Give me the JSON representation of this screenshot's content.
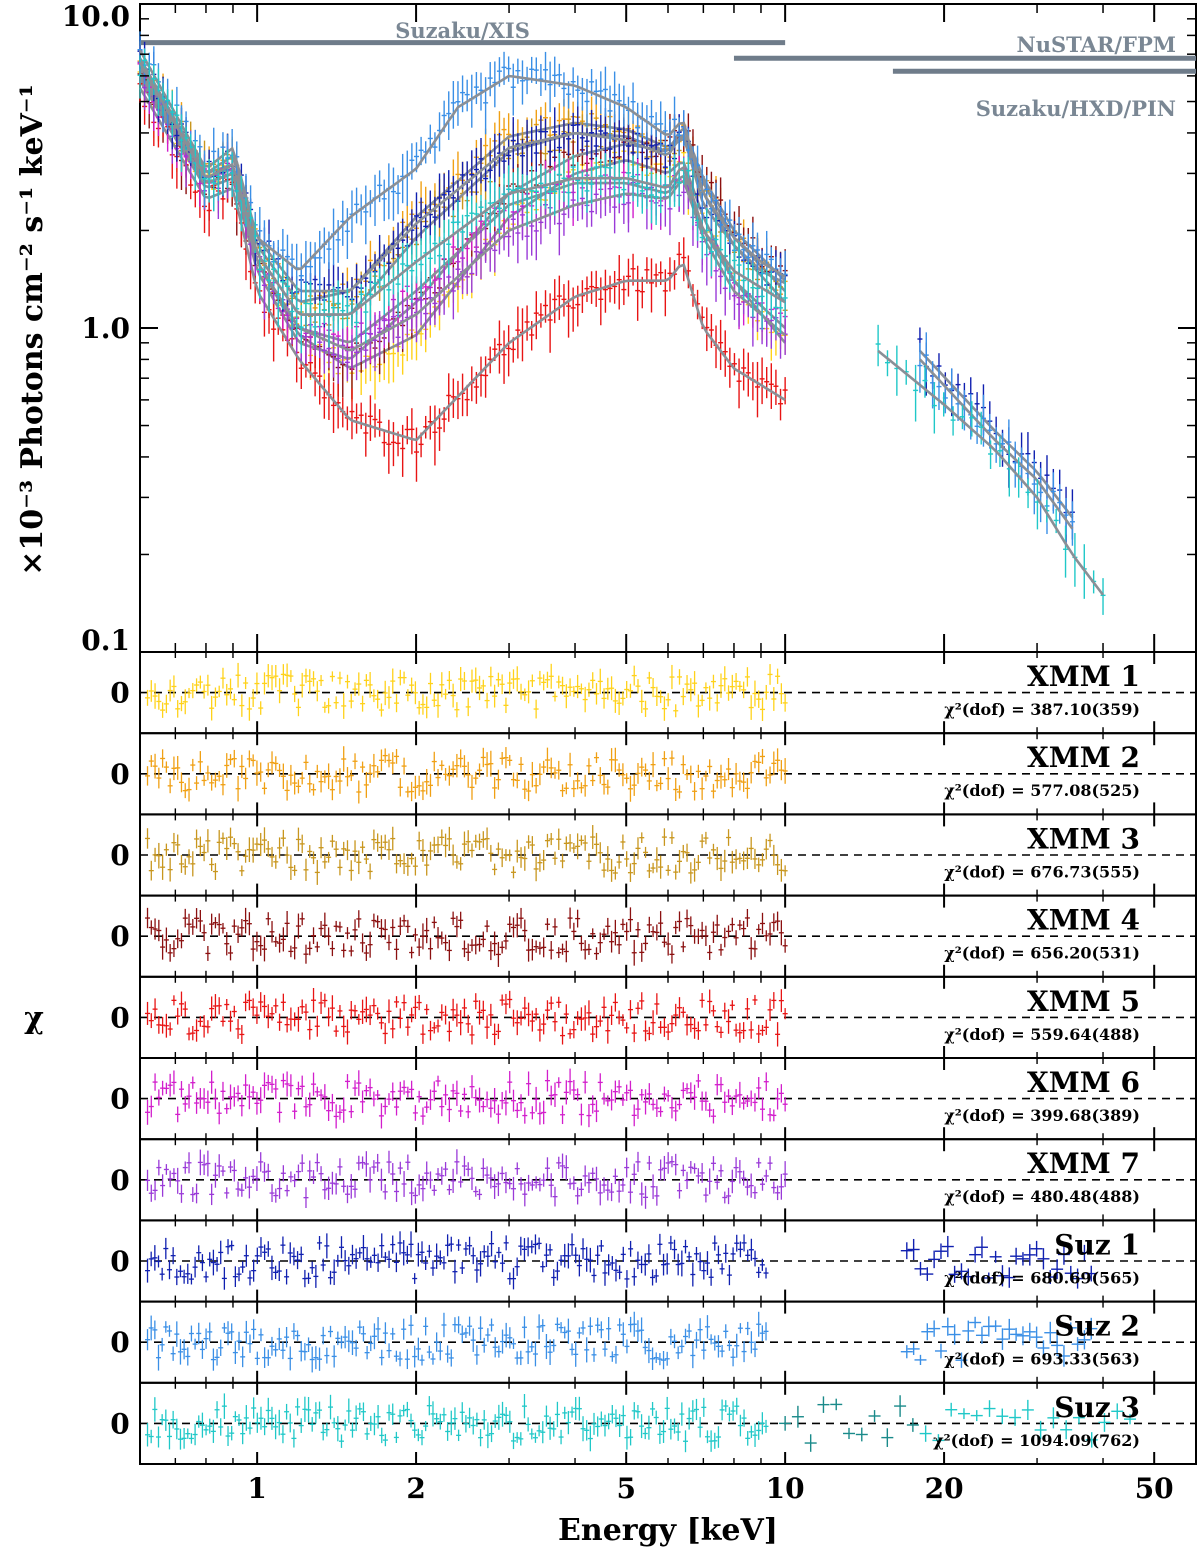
{
  "chart_data": {
    "type": "line",
    "title": "",
    "xlabel": "Energy [keV]",
    "ylabel": "×10⁻³ Photons cm⁻² s⁻¹ keV⁻¹",
    "residual_ylabel": "χ",
    "xscale": "log",
    "yscale": "log",
    "xlim": [
      0.6,
      60
    ],
    "ylim": [
      0.1,
      10.0
    ],
    "x_ticks": [
      1,
      2,
      5,
      10,
      20,
      50
    ],
    "x_tick_labels": [
      "1",
      "2",
      "5",
      "10",
      "20",
      "50"
    ],
    "y_ticks": [
      0.1,
      1.0,
      10.0
    ],
    "y_tick_labels": [
      "0.1",
      "1.0",
      "10.0"
    ],
    "instruments": [
      {
        "label": "Suzaku/XIS",
        "emin": 0.6,
        "emax": 10.0,
        "level": 7.6
      },
      {
        "label": "NuSTAR/FPM",
        "emin": 8.0,
        "emax": 60.0,
        "level": 6.8
      },
      {
        "label": "Suzaku/HXD/PIN",
        "emin": 16.0,
        "emax": 60.0,
        "level": 6.2
      }
    ],
    "series": [
      {
        "name": "XMM 1",
        "color": "#ffd21a",
        "chi2": "χ²(dof) = 387.10(359)",
        "x": [
          0.6,
          0.8,
          0.9,
          1.0,
          1.2,
          1.5,
          2.0,
          3.0,
          4.0,
          5.0,
          6.0,
          6.4,
          7.0,
          8.0,
          10.0
        ],
        "y": [
          6.0,
          2.8,
          3.0,
          1.6,
          0.95,
          0.75,
          0.95,
          2.2,
          3.0,
          3.3,
          3.0,
          3.3,
          2.2,
          1.4,
          0.9
        ]
      },
      {
        "name": "XMM 2",
        "color": "#f0a014",
        "chi2": "χ²(dof) = 577.08(525)",
        "x": [
          0.6,
          0.8,
          0.9,
          1.0,
          1.2,
          1.5,
          2.0,
          3.0,
          4.0,
          5.0,
          6.0,
          6.4,
          7.0,
          8.0,
          10.0
        ],
        "y": [
          6.5,
          3.0,
          3.2,
          1.8,
          1.2,
          1.3,
          2.2,
          3.9,
          4.3,
          4.1,
          3.6,
          4.0,
          2.8,
          1.9,
          1.3
        ]
      },
      {
        "name": "XMM 3",
        "color": "#c8961e",
        "chi2": "χ²(dof) = 676.73(555)",
        "x": [
          0.6,
          0.8,
          0.9,
          1.0,
          1.2,
          1.5,
          2.0,
          3.0,
          4.0,
          5.0,
          6.0,
          6.4,
          7.0,
          8.0,
          10.0
        ],
        "y": [
          6.3,
          2.9,
          3.1,
          1.7,
          1.1,
          1.1,
          1.9,
          3.5,
          4.0,
          3.9,
          3.5,
          3.9,
          2.6,
          1.8,
          1.2
        ]
      },
      {
        "name": "XMM 4",
        "color": "#8b1010",
        "chi2": "χ²(dof) = 656.20(531)",
        "x": [
          0.6,
          0.8,
          0.9,
          1.0,
          1.2,
          1.5,
          2.0,
          3.0,
          4.0,
          5.0,
          6.0,
          6.4,
          7.0,
          8.0,
          10.0
        ],
        "y": [
          5.8,
          2.7,
          2.9,
          1.5,
          0.9,
          0.8,
          1.2,
          2.6,
          3.4,
          3.7,
          3.5,
          4.2,
          2.9,
          2.0,
          1.4
        ]
      },
      {
        "name": "XMM 5",
        "color": "#e81414",
        "chi2": "χ²(dof) = 559.64(488)",
        "x": [
          0.6,
          0.8,
          0.9,
          1.0,
          1.2,
          1.5,
          2.0,
          3.0,
          4.0,
          5.0,
          6.0,
          6.4,
          7.0,
          8.0,
          10.0
        ],
        "y": [
          5.5,
          2.5,
          2.7,
          1.3,
          0.8,
          0.52,
          0.45,
          0.9,
          1.25,
          1.4,
          1.4,
          1.6,
          1.0,
          0.75,
          0.6
        ]
      },
      {
        "name": "XMM 6",
        "color": "#d21ecc",
        "chi2": "χ²(dof) = 399.68(389)",
        "x": [
          0.6,
          0.8,
          0.9,
          1.0,
          1.2,
          1.5,
          2.0,
          3.0,
          4.0,
          5.0,
          6.0,
          6.4,
          7.0,
          8.0,
          10.0
        ],
        "y": [
          6.0,
          2.8,
          3.0,
          1.6,
          1.0,
          0.9,
          1.3,
          2.4,
          2.8,
          2.8,
          2.6,
          3.0,
          2.0,
          1.4,
          1.0
        ]
      },
      {
        "name": "XMM 7",
        "color": "#9a3ad8",
        "chi2": "χ²(dof) = 480.48(488)",
        "x": [
          0.6,
          0.8,
          0.9,
          1.0,
          1.2,
          1.5,
          2.0,
          3.0,
          4.0,
          5.0,
          6.0,
          6.4,
          7.0,
          8.0,
          10.0
        ],
        "y": [
          6.1,
          2.8,
          3.0,
          1.6,
          1.0,
          0.85,
          1.1,
          2.0,
          2.4,
          2.6,
          2.5,
          2.9,
          1.9,
          1.3,
          0.95
        ]
      },
      {
        "name": "Suz 1",
        "color": "#1020b0",
        "chi2": "χ²(dof) = 680.69(565)",
        "x": [
          0.6,
          0.8,
          0.9,
          1.0,
          1.2,
          1.5,
          2.0,
          3.0,
          4.0,
          5.0,
          6.0,
          6.4,
          7.0,
          8.0,
          9.0,
          18.0,
          25.0,
          30.0,
          35.0
        ],
        "y": [
          6.8,
          3.0,
          3.4,
          1.9,
          1.3,
          1.3,
          2.1,
          3.6,
          4.0,
          3.8,
          3.4,
          4.0,
          2.4,
          1.8,
          1.5,
          0.85,
          0.48,
          0.36,
          0.26
        ]
      },
      {
        "name": "Suz 2",
        "color": "#3a8fe6",
        "chi2": "χ²(dof) = 693.33(563)",
        "x": [
          0.6,
          0.8,
          0.9,
          1.0,
          1.2,
          1.5,
          2.0,
          2.4,
          3.0,
          4.0,
          5.0,
          6.0,
          6.4,
          7.0,
          8.0,
          9.0,
          18.0,
          25.0,
          30.0,
          35.0
        ],
        "y": [
          7.2,
          3.1,
          3.6,
          1.9,
          1.5,
          2.2,
          3.1,
          4.8,
          6.0,
          5.6,
          4.8,
          3.9,
          4.4,
          2.6,
          1.9,
          1.6,
          0.8,
          0.45,
          0.34,
          0.24
        ]
      },
      {
        "name": "Suz 3",
        "color": "#20c8c8",
        "chi2": "χ²(dof) = 1094.09(762)",
        "x": [
          0.6,
          0.8,
          0.9,
          1.0,
          1.2,
          1.5,
          2.0,
          3.0,
          4.0,
          5.0,
          6.0,
          6.4,
          7.0,
          8.0,
          10.0,
          15.0,
          20.0,
          25.0,
          30.0,
          35.0,
          40.0
        ],
        "y": [
          6.6,
          2.9,
          3.2,
          1.7,
          1.1,
          1.1,
          1.6,
          2.6,
          2.9,
          2.9,
          2.7,
          3.2,
          2.0,
          1.5,
          1.2,
          0.85,
          0.58,
          0.42,
          0.3,
          0.2,
          0.15
        ]
      }
    ]
  }
}
